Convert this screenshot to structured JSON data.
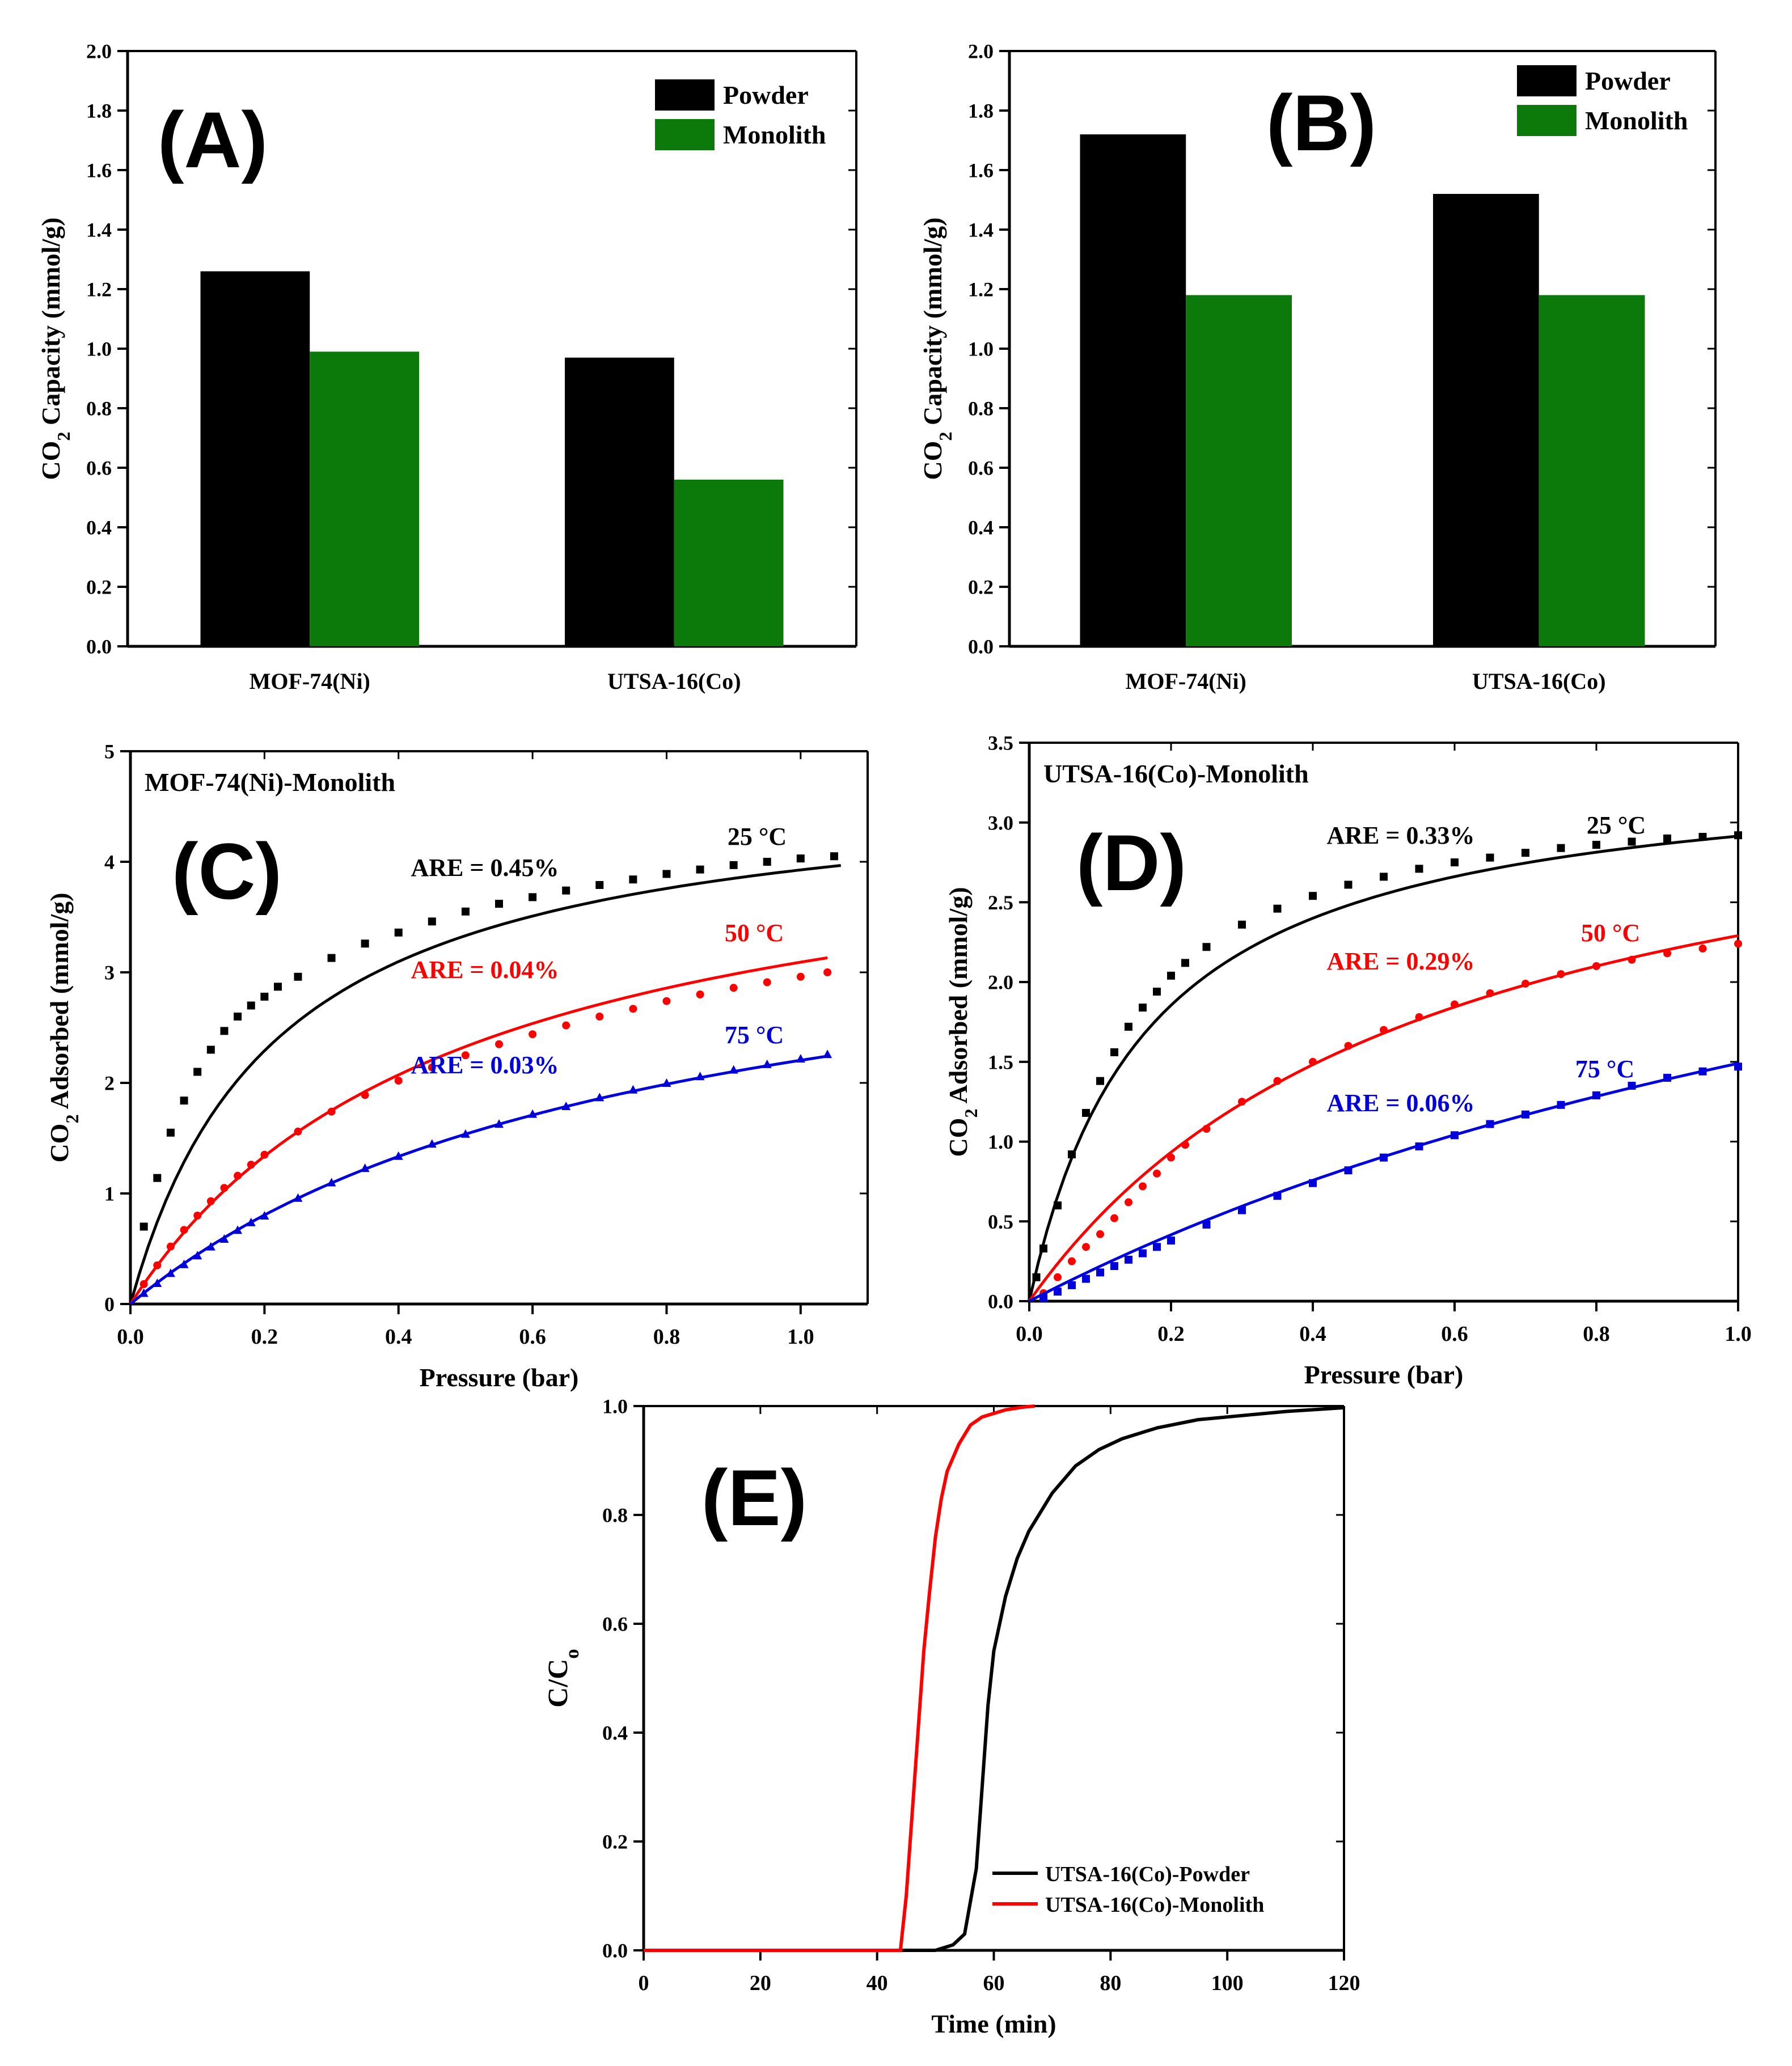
{
  "chart_data": [
    {
      "id": "A",
      "panel_label": "(A)",
      "type": "bar",
      "categories": [
        "MOF-74(Ni)",
        "UTSA-16(Co)"
      ],
      "series": [
        {
          "name": "Powder",
          "values": [
            1.26,
            0.97
          ],
          "color": "#000000"
        },
        {
          "name": "Monolith",
          "values": [
            0.99,
            0.56
          ],
          "color": "#0b7a0b"
        }
      ],
      "ylabel": "CO2 Capacity (mmol/g)",
      "ylim": [
        0,
        2.0
      ],
      "yticks": [
        "0.0",
        "0.2",
        "0.4",
        "0.6",
        "0.8",
        "1.0",
        "1.2",
        "1.4",
        "1.6",
        "1.8",
        "2.0"
      ],
      "legend": "top-right"
    },
    {
      "id": "B",
      "panel_label": "(B)",
      "type": "bar",
      "categories": [
        "MOF-74(Ni)",
        "UTSA-16(Co)"
      ],
      "series": [
        {
          "name": "Powder",
          "values": [
            1.72,
            1.52
          ],
          "color": "#000000"
        },
        {
          "name": "Monolith",
          "values": [
            1.18,
            1.18
          ],
          "color": "#0b7a0b"
        }
      ],
      "ylabel": "CO2 Capacity (mmol/g)",
      "ylim": [
        0,
        2.0
      ],
      "yticks": [
        "0.0",
        "0.2",
        "0.4",
        "0.6",
        "0.8",
        "1.0",
        "1.2",
        "1.4",
        "1.6",
        "1.8",
        "2.0"
      ],
      "legend": "top-right"
    },
    {
      "id": "C",
      "panel_label": "(C)",
      "type": "scatter",
      "title": "MOF-74(Ni)-Monolith",
      "xlabel": "Pressure (bar)",
      "ylabel": "CO2 Adsorbed (mmol/g)",
      "xlim": [
        0,
        1.1
      ],
      "ylim": [
        0,
        5
      ],
      "xticks": [
        "0.0",
        "0.2",
        "0.4",
        "0.6",
        "0.8",
        "1.0"
      ],
      "yticks": [
        "0",
        "1",
        "2",
        "3",
        "4",
        "5"
      ],
      "series": [
        {
          "name": "25 °C",
          "color": "#000000",
          "marker": "square",
          "are": "ARE = 0.45%",
          "fit": {
            "qmax": 4.78,
            "b": 4.6
          },
          "xmax": 1.06,
          "points": [
            [
              0.02,
              0.7
            ],
            [
              0.04,
              1.14
            ],
            [
              0.06,
              1.55
            ],
            [
              0.08,
              1.84
            ],
            [
              0.1,
              2.1
            ],
            [
              0.12,
              2.3
            ],
            [
              0.14,
              2.47
            ],
            [
              0.16,
              2.6
            ],
            [
              0.18,
              2.7
            ],
            [
              0.2,
              2.78
            ],
            [
              0.22,
              2.87
            ],
            [
              0.25,
              2.96
            ],
            [
              0.3,
              3.13
            ],
            [
              0.35,
              3.26
            ],
            [
              0.4,
              3.36
            ],
            [
              0.45,
              3.46
            ],
            [
              0.5,
              3.55
            ],
            [
              0.55,
              3.62
            ],
            [
              0.6,
              3.68
            ],
            [
              0.65,
              3.74
            ],
            [
              0.7,
              3.79
            ],
            [
              0.75,
              3.84
            ],
            [
              0.8,
              3.89
            ],
            [
              0.85,
              3.93
            ],
            [
              0.9,
              3.97
            ],
            [
              0.95,
              4.0
            ],
            [
              1.0,
              4.03
            ],
            [
              1.05,
              4.05
            ]
          ]
        },
        {
          "name": "50 °C",
          "color": "#ff0000",
          "marker": "circle",
          "are": "ARE = 0.04%",
          "fit": {
            "qmax": 4.6,
            "b": 2.05
          },
          "xmax": 1.04,
          "points": [
            [
              0.02,
              0.18
            ],
            [
              0.04,
              0.35
            ],
            [
              0.06,
              0.52
            ],
            [
              0.08,
              0.67
            ],
            [
              0.1,
              0.8
            ],
            [
              0.12,
              0.93
            ],
            [
              0.14,
              1.05
            ],
            [
              0.16,
              1.16
            ],
            [
              0.18,
              1.26
            ],
            [
              0.2,
              1.35
            ],
            [
              0.25,
              1.56
            ],
            [
              0.3,
              1.74
            ],
            [
              0.35,
              1.89
            ],
            [
              0.4,
              2.02
            ],
            [
              0.45,
              2.14
            ],
            [
              0.5,
              2.25
            ],
            [
              0.55,
              2.35
            ],
            [
              0.6,
              2.44
            ],
            [
              0.65,
              2.52
            ],
            [
              0.7,
              2.6
            ],
            [
              0.75,
              2.67
            ],
            [
              0.8,
              2.74
            ],
            [
              0.85,
              2.8
            ],
            [
              0.9,
              2.86
            ],
            [
              0.95,
              2.91
            ],
            [
              1.0,
              2.96
            ],
            [
              1.04,
              3.0
            ]
          ]
        },
        {
          "name": "75 °C",
          "color": "#0000dd",
          "marker": "triangle",
          "are": "ARE = 0.03%",
          "fit": {
            "qmax": 3.9,
            "b": 1.3
          },
          "xmax": 1.04,
          "points": [
            [
              0.02,
              0.1
            ],
            [
              0.04,
              0.19
            ],
            [
              0.06,
              0.28
            ],
            [
              0.08,
              0.36
            ],
            [
              0.1,
              0.44
            ],
            [
              0.12,
              0.52
            ],
            [
              0.14,
              0.59
            ],
            [
              0.16,
              0.67
            ],
            [
              0.18,
              0.74
            ],
            [
              0.2,
              0.8
            ],
            [
              0.25,
              0.96
            ],
            [
              0.3,
              1.1
            ],
            [
              0.35,
              1.23
            ],
            [
              0.4,
              1.34
            ],
            [
              0.45,
              1.45
            ],
            [
              0.5,
              1.54
            ],
            [
              0.55,
              1.63
            ],
            [
              0.6,
              1.72
            ],
            [
              0.65,
              1.79
            ],
            [
              0.7,
              1.87
            ],
            [
              0.75,
              1.94
            ],
            [
              0.8,
              2.0
            ],
            [
              0.85,
              2.06
            ],
            [
              0.9,
              2.12
            ],
            [
              0.95,
              2.17
            ],
            [
              1.0,
              2.22
            ],
            [
              1.04,
              2.26
            ]
          ]
        }
      ]
    },
    {
      "id": "D",
      "panel_label": "(D)",
      "type": "scatter",
      "title": "UTSA-16(Co)-Monolith",
      "xlabel": "Pressure (bar)",
      "ylabel": "CO2 Adsorbed (mmol/g)",
      "xlim": [
        0,
        1.0
      ],
      "ylim": [
        0,
        3.5
      ],
      "xticks": [
        "0.0",
        "0.2",
        "0.4",
        "0.6",
        "0.8",
        "1.0"
      ],
      "yticks": [
        "0.0",
        "0.5",
        "1.0",
        "1.5",
        "2.0",
        "2.5",
        "3.0",
        "3.5"
      ],
      "series": [
        {
          "name": "25 °C",
          "color": "#000000",
          "marker": "square",
          "are": "ARE = 0.33%",
          "fit": {
            "qmax": 3.4,
            "b": 6.0
          },
          "xmax": 1.0,
          "points": [
            [
              0.01,
              0.15
            ],
            [
              0.02,
              0.33
            ],
            [
              0.04,
              0.6
            ],
            [
              0.06,
              0.92
            ],
            [
              0.08,
              1.18
            ],
            [
              0.1,
              1.38
            ],
            [
              0.12,
              1.56
            ],
            [
              0.14,
              1.72
            ],
            [
              0.16,
              1.84
            ],
            [
              0.18,
              1.94
            ],
            [
              0.2,
              2.04
            ],
            [
              0.22,
              2.12
            ],
            [
              0.25,
              2.22
            ],
            [
              0.3,
              2.36
            ],
            [
              0.35,
              2.46
            ],
            [
              0.4,
              2.54
            ],
            [
              0.45,
              2.61
            ],
            [
              0.5,
              2.66
            ],
            [
              0.55,
              2.71
            ],
            [
              0.6,
              2.75
            ],
            [
              0.65,
              2.78
            ],
            [
              0.7,
              2.81
            ],
            [
              0.75,
              2.84
            ],
            [
              0.8,
              2.86
            ],
            [
              0.85,
              2.88
            ],
            [
              0.9,
              2.9
            ],
            [
              0.95,
              2.91
            ],
            [
              1.0,
              2.92
            ]
          ]
        },
        {
          "name": "50 °C",
          "color": "#ff0000",
          "marker": "circle",
          "are": "ARE = 0.29%",
          "fit": {
            "qmax": 3.6,
            "b": 1.75
          },
          "xmax": 1.0,
          "points": [
            [
              0.02,
              0.05
            ],
            [
              0.04,
              0.15
            ],
            [
              0.06,
              0.25
            ],
            [
              0.08,
              0.34
            ],
            [
              0.1,
              0.42
            ],
            [
              0.12,
              0.52
            ],
            [
              0.14,
              0.62
            ],
            [
              0.16,
              0.72
            ],
            [
              0.18,
              0.8
            ],
            [
              0.2,
              0.9
            ],
            [
              0.22,
              0.98
            ],
            [
              0.25,
              1.08
            ],
            [
              0.3,
              1.25
            ],
            [
              0.35,
              1.38
            ],
            [
              0.4,
              1.5
            ],
            [
              0.45,
              1.6
            ],
            [
              0.5,
              1.7
            ],
            [
              0.55,
              1.78
            ],
            [
              0.6,
              1.86
            ],
            [
              0.65,
              1.93
            ],
            [
              0.7,
              1.99
            ],
            [
              0.75,
              2.05
            ],
            [
              0.8,
              2.1
            ],
            [
              0.85,
              2.14
            ],
            [
              0.9,
              2.18
            ],
            [
              0.95,
              2.21
            ],
            [
              1.0,
              2.24
            ]
          ]
        },
        {
          "name": "75 °C",
          "color": "#0000dd",
          "marker": "square",
          "are": "ARE = 0.06%",
          "fit": {
            "qmax": 4.2,
            "b": 0.55
          },
          "xmax": 1.0,
          "points": [
            [
              0.02,
              0.02
            ],
            [
              0.04,
              0.06
            ],
            [
              0.06,
              0.1
            ],
            [
              0.08,
              0.14
            ],
            [
              0.1,
              0.18
            ],
            [
              0.12,
              0.22
            ],
            [
              0.14,
              0.26
            ],
            [
              0.16,
              0.3
            ],
            [
              0.18,
              0.34
            ],
            [
              0.2,
              0.38
            ],
            [
              0.25,
              0.48
            ],
            [
              0.3,
              0.57
            ],
            [
              0.35,
              0.66
            ],
            [
              0.4,
              0.74
            ],
            [
              0.45,
              0.82
            ],
            [
              0.5,
              0.9
            ],
            [
              0.55,
              0.97
            ],
            [
              0.6,
              1.04
            ],
            [
              0.65,
              1.11
            ],
            [
              0.7,
              1.17
            ],
            [
              0.75,
              1.23
            ],
            [
              0.8,
              1.29
            ],
            [
              0.85,
              1.35
            ],
            [
              0.9,
              1.4
            ],
            [
              0.95,
              1.44
            ],
            [
              1.0,
              1.47
            ]
          ]
        }
      ]
    },
    {
      "id": "E",
      "panel_label": "(E)",
      "type": "line",
      "xlabel": "Time (min)",
      "ylabel": "C/Co",
      "xlim": [
        0,
        120
      ],
      "ylim": [
        0,
        1.0
      ],
      "xticks": [
        "0",
        "20",
        "40",
        "60",
        "80",
        "100",
        "120"
      ],
      "yticks": [
        "0.0",
        "0.2",
        "0.4",
        "0.6",
        "0.8",
        "1.0"
      ],
      "legend": "bottom-right",
      "series": [
        {
          "name": "UTSA-16(Co)-Powder",
          "color": "#000000",
          "points": [
            [
              0,
              0
            ],
            [
              50,
              0
            ],
            [
              53,
              0.01
            ],
            [
              55,
              0.03
            ],
            [
              57,
              0.15
            ],
            [
              58,
              0.3
            ],
            [
              59,
              0.45
            ],
            [
              60,
              0.55
            ],
            [
              62,
              0.65
            ],
            [
              64,
              0.72
            ],
            [
              66,
              0.77
            ],
            [
              70,
              0.84
            ],
            [
              74,
              0.89
            ],
            [
              78,
              0.92
            ],
            [
              82,
              0.94
            ],
            [
              88,
              0.96
            ],
            [
              95,
              0.975
            ],
            [
              100,
              0.98
            ],
            [
              110,
              0.99
            ],
            [
              120,
              0.997
            ]
          ]
        },
        {
          "name": "UTSA-16(Co)-Monolith",
          "color": "#ff0000",
          "points": [
            [
              0,
              0
            ],
            [
              44,
              0
            ],
            [
              45,
              0.1
            ],
            [
              46,
              0.25
            ],
            [
              47,
              0.4
            ],
            [
              48,
              0.55
            ],
            [
              49,
              0.66
            ],
            [
              50,
              0.76
            ],
            [
              51,
              0.83
            ],
            [
              52,
              0.88
            ],
            [
              54,
              0.93
            ],
            [
              56,
              0.965
            ],
            [
              58,
              0.98
            ],
            [
              62,
              0.993
            ],
            [
              65,
              0.998
            ],
            [
              67,
              1.0
            ]
          ]
        }
      ]
    }
  ]
}
